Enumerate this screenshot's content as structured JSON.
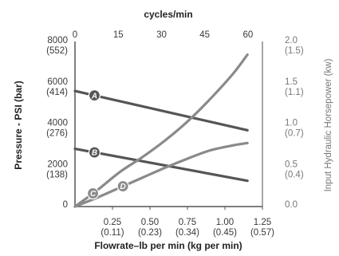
{
  "chart_data": {
    "type": "line",
    "top_axis": {
      "title": "cycles/min",
      "ticks": [
        "0",
        "15",
        "30",
        "45",
        "60"
      ],
      "values": [
        0,
        15,
        30,
        45,
        60
      ]
    },
    "x_axis": {
      "title": "Flowrate–lb per min (kg per min)",
      "lim": [
        0,
        1.25
      ],
      "ticks": [
        {
          "value": 0.25,
          "line1": "0.25",
          "line2": "(0.11)"
        },
        {
          "value": 0.5,
          "line1": "0.50",
          "line2": "(0.23)"
        },
        {
          "value": 0.75,
          "line1": "0.75",
          "line2": "(0.34)"
        },
        {
          "value": 1.0,
          "line1": "1.00",
          "line2": "(0.45)"
        },
        {
          "value": 1.25,
          "line1": "1.25",
          "line2": "(0.57)"
        }
      ]
    },
    "y_left": {
      "title": "Pressure - PSI (bar)",
      "lim": [
        0,
        8000
      ],
      "ticks": [
        {
          "value": 0,
          "line1": "0",
          "line2": ""
        },
        {
          "value": 2000,
          "line1": "2000",
          "line2": "(138)"
        },
        {
          "value": 4000,
          "line1": "4000",
          "line2": "(276)"
        },
        {
          "value": 6000,
          "line1": "6000",
          "line2": "(414)"
        },
        {
          "value": 8000,
          "line1": "8000",
          "line2": "(552)"
        }
      ]
    },
    "y_right": {
      "title": "Input Hydraulic Horsepower (kw)",
      "lim": [
        0,
        2.0
      ],
      "ticks": [
        {
          "value": 0,
          "line1": "0.0",
          "line2": ""
        },
        {
          "value": 0.5,
          "line1": "0.5",
          "line2": "(0.4)"
        },
        {
          "value": 1.0,
          "line1": "1.0",
          "line2": "(0.7)"
        },
        {
          "value": 1.5,
          "line1": "1.5",
          "line2": "(1.1)"
        },
        {
          "value": 2.0,
          "line1": "2.0",
          "line2": "(1.5)"
        }
      ]
    },
    "series": [
      {
        "name": "A",
        "axis": "left",
        "color": "#555555",
        "x": [
          0,
          1.15
        ],
        "y": [
          5600,
          3700
        ],
        "label_at": 0.13
      },
      {
        "name": "B",
        "axis": "left",
        "color": "#555555",
        "x": [
          0,
          1.15
        ],
        "y": [
          2800,
          1250
        ],
        "label_at": 0.13
      },
      {
        "name": "C",
        "axis": "right",
        "color": "#8a8a8a",
        "x": [
          0,
          0.15,
          0.3,
          0.45,
          0.6,
          0.75,
          0.9,
          1.05,
          1.15
        ],
        "y": [
          0,
          0.2,
          0.42,
          0.6,
          0.8,
          1.03,
          1.3,
          1.6,
          1.84
        ],
        "label_at": 0.12
      },
      {
        "name": "D",
        "axis": "right",
        "color": "#8a8a8a",
        "x": [
          0,
          0.15,
          0.3,
          0.45,
          0.6,
          0.75,
          0.9,
          1.05,
          1.15
        ],
        "y": [
          0,
          0.11,
          0.23,
          0.35,
          0.47,
          0.58,
          0.68,
          0.74,
          0.77
        ],
        "label_at": 0.32
      }
    ],
    "colors": {
      "axis": "#555555",
      "grey_text": "#777777",
      "badge_dark": "#555555",
      "badge_light": "#8a8a8a"
    }
  }
}
